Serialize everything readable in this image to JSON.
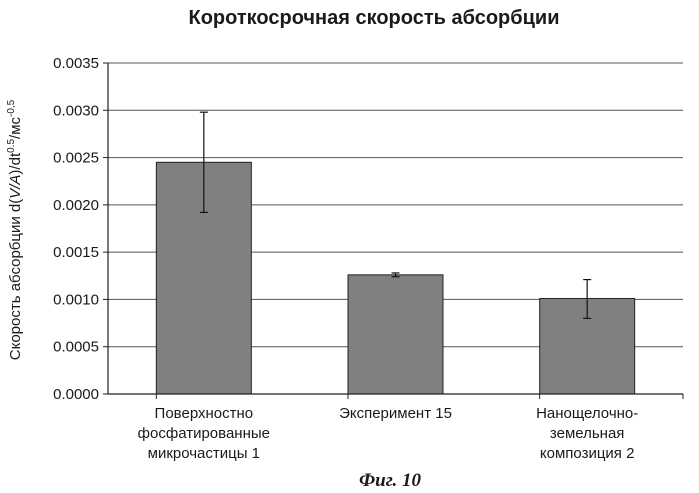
{
  "chart_data": {
    "type": "bar",
    "title": "Короткосрочная скорость абсорбции",
    "ylabel": "Скорость абсорбции d(V/A)/dt^0.5/мс^-0.5",
    "ylabel_parts": {
      "main": "Скорость абсорбции d(",
      "italic": "V/A",
      "mid": ")/dt",
      "sup1": "0.5",
      "unit": "/мс",
      "sup2": "-0,5"
    },
    "xlabel": "",
    "categories": [
      [
        "Поверхностно",
        "фосфатированные",
        "микрочастицы 1"
      ],
      [
        "Эксперимент 15"
      ],
      [
        "Нанощелочно-",
        "земельная",
        "композиция 2"
      ]
    ],
    "values": [
      0.00245,
      0.00126,
      0.00101
    ],
    "error_low": [
      0.00192,
      0.00124,
      0.0008
    ],
    "error_high": [
      0.00298,
      0.00128,
      0.00121
    ],
    "ylim": [
      0,
      0.0035
    ],
    "yticks": [
      "0.0000",
      "0.0005",
      "0.0010",
      "0.0015",
      "0.0020",
      "0.0025",
      "0.0030",
      "0.0035"
    ],
    "grid": true,
    "bar_color": "#808080"
  },
  "caption": "Фиг. 10"
}
